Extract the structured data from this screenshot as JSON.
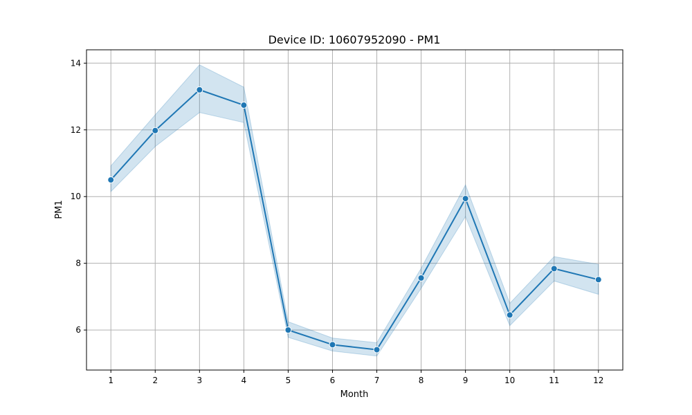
{
  "chart_data": {
    "type": "line",
    "title": "Device ID: 10607952090 - PM1",
    "xlabel": "Month",
    "ylabel": "PM1",
    "x": [
      1,
      2,
      3,
      4,
      5,
      6,
      7,
      8,
      9,
      10,
      11,
      12
    ],
    "x_ticks": [
      "1",
      "2",
      "3",
      "4",
      "5",
      "6",
      "7",
      "8",
      "9",
      "10",
      "11",
      "12"
    ],
    "y_ticks": [
      "6",
      "8",
      "10",
      "12",
      "14"
    ],
    "xlim": [
      0.45,
      12.55
    ],
    "ylim": [
      4.8,
      14.4
    ],
    "grid": true,
    "series": [
      {
        "values": [
          10.5,
          11.98,
          13.2,
          12.74,
          6.0,
          5.56,
          5.41,
          7.56,
          9.94,
          6.45,
          7.84,
          7.51
        ],
        "ci_lower": [
          10.15,
          11.5,
          12.52,
          12.22,
          5.78,
          5.37,
          5.22,
          7.25,
          9.4,
          6.13,
          7.47,
          7.07
        ],
        "ci_upper": [
          10.92,
          12.45,
          13.95,
          13.28,
          6.25,
          5.76,
          5.62,
          7.85,
          10.35,
          6.8,
          8.2,
          7.97
        ],
        "color": "#1f77b4",
        "band_color": "#1f77b4"
      }
    ]
  }
}
